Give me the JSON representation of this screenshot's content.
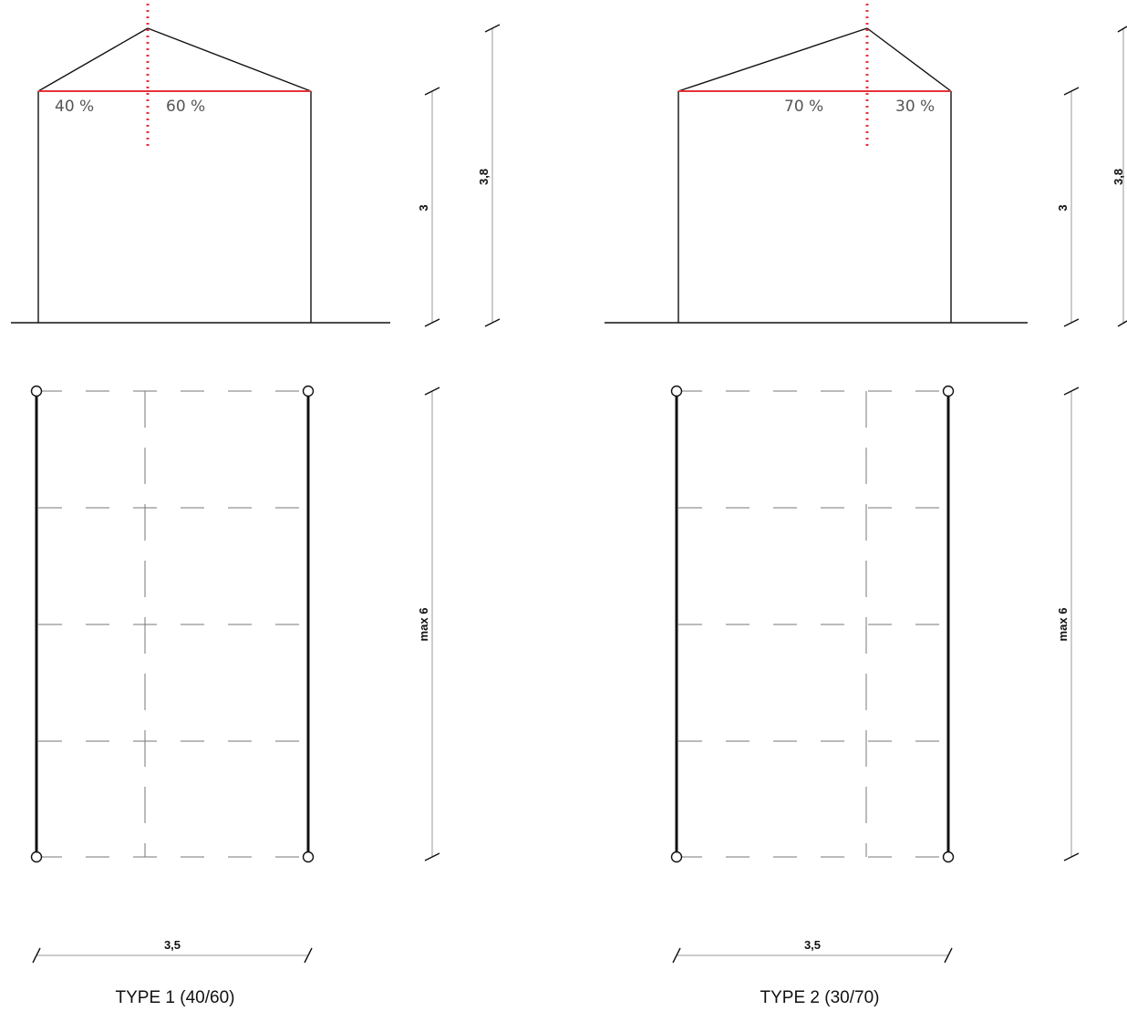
{
  "panels": [
    {
      "caption": "TYPE 1 (40/60)",
      "left_pct": "40 %",
      "right_pct": "60 %",
      "wall_height": "3",
      "total_height": "3,8",
      "length": "max 6",
      "width": "3,5"
    },
    {
      "caption": "TYPE 2 (30/70)",
      "left_pct": "70 %",
      "right_pct": "30 %",
      "wall_height": "3",
      "total_height": "3,8",
      "length": "max 6",
      "width": "3,5"
    }
  ],
  "colors": {
    "line": "#111111",
    "accent_red": "#e8333a",
    "dim_line": "#999999",
    "dash": "#777777"
  }
}
